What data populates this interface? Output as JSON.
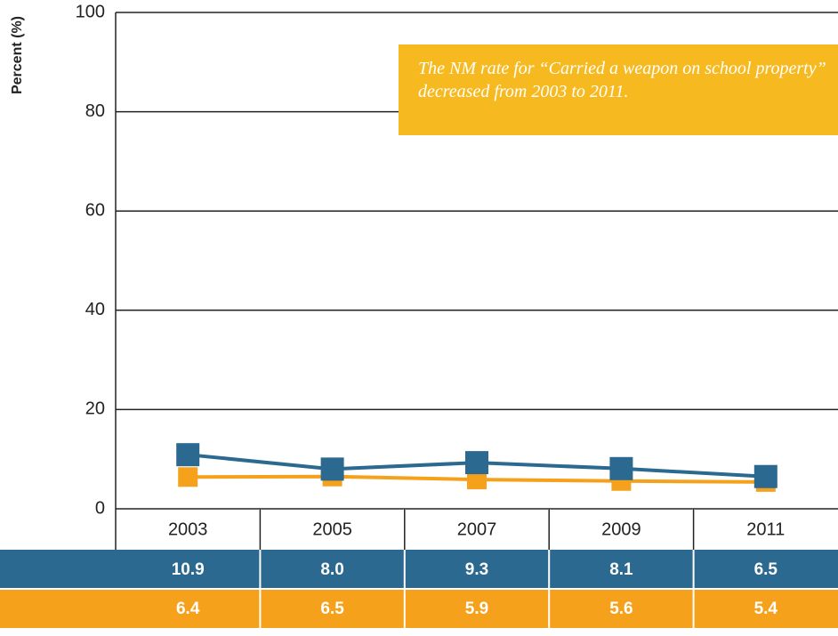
{
  "chart_data": {
    "type": "line",
    "y_label": "Percent (%)",
    "annotation": "The NM rate for “Carried a weapon on school property” decreased from 2003 to 2011.",
    "categories": [
      "2003",
      "2005",
      "2007",
      "2009",
      "2011"
    ],
    "series": [
      {
        "color": "#2b6990",
        "values": [
          10.9,
          8.0,
          9.3,
          8.1,
          6.5
        ],
        "value_labels": [
          "10.9",
          "8.0",
          "9.3",
          "8.1",
          "6.5"
        ]
      },
      {
        "color": "#f5a11c",
        "values": [
          6.4,
          6.5,
          5.9,
          5.6,
          5.4
        ],
        "value_labels": [
          "6.4",
          "6.5",
          "5.9",
          "5.6",
          "5.4"
        ]
      }
    ],
    "ylim": [
      0,
      100
    ],
    "yticks": [
      0,
      20,
      40,
      60,
      80,
      100
    ],
    "grid": true
  }
}
